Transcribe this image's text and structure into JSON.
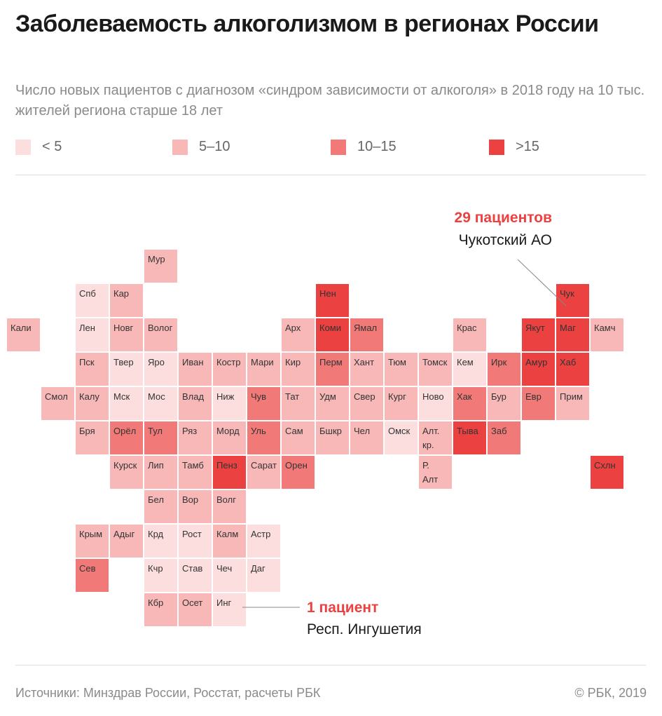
{
  "header": {
    "title": "Заболеваемость алкоголизмом в регионах России",
    "subtitle": "Число новых пациентов с диагнозом «синдром зависимости от алкоголя» в 2018 году на 10 тыс. жителей региона старше 18 лет"
  },
  "legend": {
    "items": [
      {
        "label": "< 5",
        "color": "#fcdede"
      },
      {
        "label": "5–10",
        "color": "#f8b8b8"
      },
      {
        "label": "10–15",
        "color": "#f17a78"
      },
      {
        "label": ">15",
        "color": "#eb4141"
      }
    ]
  },
  "chart_data": {
    "type": "heatmap",
    "title": "Заболеваемость алкоголизмом в регионах России",
    "value_classes": [
      "< 5",
      "5–10",
      "10–15",
      ">15"
    ],
    "cells": [
      {
        "label": "Мур",
        "col": 4,
        "row": 0,
        "class": 1
      },
      {
        "label": "Спб",
        "col": 2,
        "row": 1,
        "class": 0
      },
      {
        "label": "Кар",
        "col": 3,
        "row": 1,
        "class": 1
      },
      {
        "label": "Нен",
        "col": 9,
        "row": 1,
        "class": 3
      },
      {
        "label": "Чук",
        "col": 16,
        "row": 1,
        "class": 3
      },
      {
        "label": "Кали",
        "col": 0,
        "row": 2,
        "class": 1
      },
      {
        "label": "Лен",
        "col": 2,
        "row": 2,
        "class": 0
      },
      {
        "label": "Новг",
        "col": 3,
        "row": 2,
        "class": 1
      },
      {
        "label": "Волог",
        "col": 4,
        "row": 2,
        "class": 1
      },
      {
        "label": "Арх",
        "col": 8,
        "row": 2,
        "class": 1
      },
      {
        "label": "Коми",
        "col": 9,
        "row": 2,
        "class": 3
      },
      {
        "label": "Ямал",
        "col": 10,
        "row": 2,
        "class": 2
      },
      {
        "label": "Крас",
        "col": 13,
        "row": 2,
        "class": 1
      },
      {
        "label": "Якут",
        "col": 15,
        "row": 2,
        "class": 3
      },
      {
        "label": "Маг",
        "col": 16,
        "row": 2,
        "class": 3
      },
      {
        "label": "Камч",
        "col": 17,
        "row": 2,
        "class": 1
      },
      {
        "label": "Пск",
        "col": 2,
        "row": 3,
        "class": 1
      },
      {
        "label": "Твер",
        "col": 3,
        "row": 3,
        "class": 0
      },
      {
        "label": "Яро",
        "col": 4,
        "row": 3,
        "class": 0
      },
      {
        "label": "Иван",
        "col": 5,
        "row": 3,
        "class": 1
      },
      {
        "label": "Костр",
        "col": 6,
        "row": 3,
        "class": 1
      },
      {
        "label": "Мари",
        "col": 7,
        "row": 3,
        "class": 1
      },
      {
        "label": "Кир",
        "col": 8,
        "row": 3,
        "class": 1
      },
      {
        "label": "Перм",
        "col": 9,
        "row": 3,
        "class": 2
      },
      {
        "label": "Хант",
        "col": 10,
        "row": 3,
        "class": 1
      },
      {
        "label": "Тюм",
        "col": 11,
        "row": 3,
        "class": 1
      },
      {
        "label": "Томск",
        "col": 12,
        "row": 3,
        "class": 1
      },
      {
        "label": "Кем",
        "col": 13,
        "row": 3,
        "class": 0
      },
      {
        "label": "Ирк",
        "col": 14,
        "row": 3,
        "class": 2
      },
      {
        "label": "Амур",
        "col": 15,
        "row": 3,
        "class": 3
      },
      {
        "label": "Хаб",
        "col": 16,
        "row": 3,
        "class": 3
      },
      {
        "label": "Смол",
        "col": 1,
        "row": 4,
        "class": 1
      },
      {
        "label": "Калу",
        "col": 2,
        "row": 4,
        "class": 1
      },
      {
        "label": "Мск",
        "col": 3,
        "row": 4,
        "class": 0
      },
      {
        "label": "Мос",
        "col": 4,
        "row": 4,
        "class": 0
      },
      {
        "label": "Влад",
        "col": 5,
        "row": 4,
        "class": 1
      },
      {
        "label": "Ниж",
        "col": 6,
        "row": 4,
        "class": 0
      },
      {
        "label": "Чув",
        "col": 7,
        "row": 4,
        "class": 2
      },
      {
        "label": "Тат",
        "col": 8,
        "row": 4,
        "class": 1
      },
      {
        "label": "Удм",
        "col": 9,
        "row": 4,
        "class": 1
      },
      {
        "label": "Свер",
        "col": 10,
        "row": 4,
        "class": 1
      },
      {
        "label": "Кург",
        "col": 11,
        "row": 4,
        "class": 1
      },
      {
        "label": "Ново",
        "col": 12,
        "row": 4,
        "class": 0
      },
      {
        "label": "Хак",
        "col": 13,
        "row": 4,
        "class": 2
      },
      {
        "label": "Бур",
        "col": 14,
        "row": 4,
        "class": 1
      },
      {
        "label": "Евр",
        "col": 15,
        "row": 4,
        "class": 2
      },
      {
        "label": "Прим",
        "col": 16,
        "row": 4,
        "class": 1
      },
      {
        "label": "Бря",
        "col": 2,
        "row": 5,
        "class": 1
      },
      {
        "label": "Орёл",
        "col": 3,
        "row": 5,
        "class": 2
      },
      {
        "label": "Тул",
        "col": 4,
        "row": 5,
        "class": 2
      },
      {
        "label": "Ряз",
        "col": 5,
        "row": 5,
        "class": 1
      },
      {
        "label": "Морд",
        "col": 6,
        "row": 5,
        "class": 1
      },
      {
        "label": "Уль",
        "col": 7,
        "row": 5,
        "class": 2
      },
      {
        "label": "Сам",
        "col": 8,
        "row": 5,
        "class": 1
      },
      {
        "label": "Бшкр",
        "col": 9,
        "row": 5,
        "class": 1
      },
      {
        "label": "Чел",
        "col": 10,
        "row": 5,
        "class": 1
      },
      {
        "label": "Омск",
        "col": 11,
        "row": 5,
        "class": 0
      },
      {
        "label": "Алт. кр.",
        "col": 12,
        "row": 5,
        "class": 1
      },
      {
        "label": "Тыва",
        "col": 13,
        "row": 5,
        "class": 3
      },
      {
        "label": "Заб",
        "col": 14,
        "row": 5,
        "class": 2
      },
      {
        "label": "Курск",
        "col": 3,
        "row": 6,
        "class": 1
      },
      {
        "label": "Лип",
        "col": 4,
        "row": 6,
        "class": 1
      },
      {
        "label": "Тамб",
        "col": 5,
        "row": 6,
        "class": 1
      },
      {
        "label": "Пенз",
        "col": 6,
        "row": 6,
        "class": 3
      },
      {
        "label": "Сарат",
        "col": 7,
        "row": 6,
        "class": 1
      },
      {
        "label": "Орен",
        "col": 8,
        "row": 6,
        "class": 2
      },
      {
        "label": "Р. Алт",
        "col": 12,
        "row": 6,
        "class": 1
      },
      {
        "label": "Схлн",
        "col": 17,
        "row": 6,
        "class": 3
      },
      {
        "label": "Бел",
        "col": 4,
        "row": 7,
        "class": 1
      },
      {
        "label": "Вор",
        "col": 5,
        "row": 7,
        "class": 1
      },
      {
        "label": "Волг",
        "col": 6,
        "row": 7,
        "class": 1
      },
      {
        "label": "Крым",
        "col": 2,
        "row": 8,
        "class": 1
      },
      {
        "label": "Адыг",
        "col": 3,
        "row": 8,
        "class": 1
      },
      {
        "label": "Крд",
        "col": 4,
        "row": 8,
        "class": 0
      },
      {
        "label": "Рост",
        "col": 5,
        "row": 8,
        "class": 0
      },
      {
        "label": "Калм",
        "col": 6,
        "row": 8,
        "class": 1
      },
      {
        "label": "Астр",
        "col": 7,
        "row": 8,
        "class": 0
      },
      {
        "label": "Сев",
        "col": 2,
        "row": 9,
        "class": 2
      },
      {
        "label": "Кчр",
        "col": 4,
        "row": 9,
        "class": 0
      },
      {
        "label": "Став",
        "col": 5,
        "row": 9,
        "class": 0
      },
      {
        "label": "Чеч",
        "col": 6,
        "row": 9,
        "class": 0
      },
      {
        "label": "Даг",
        "col": 7,
        "row": 9,
        "class": 0
      },
      {
        "label": "Кбр",
        "col": 4,
        "row": 10,
        "class": 1
      },
      {
        "label": "Осет",
        "col": 5,
        "row": 10,
        "class": 1
      },
      {
        "label": "Инг",
        "col": 6,
        "row": 10,
        "class": 0
      }
    ],
    "annotations": [
      {
        "value": "29 пациентов",
        "region": "Чукотский АО",
        "cell": "Чук"
      },
      {
        "value": "1 пациент",
        "region": "Респ. Ингушетия",
        "cell": "Инг"
      }
    ]
  },
  "footer": {
    "sources": "Источники: Минздрав России, Росстат, расчеты РБК",
    "copyright": "© РБК, 2019"
  }
}
